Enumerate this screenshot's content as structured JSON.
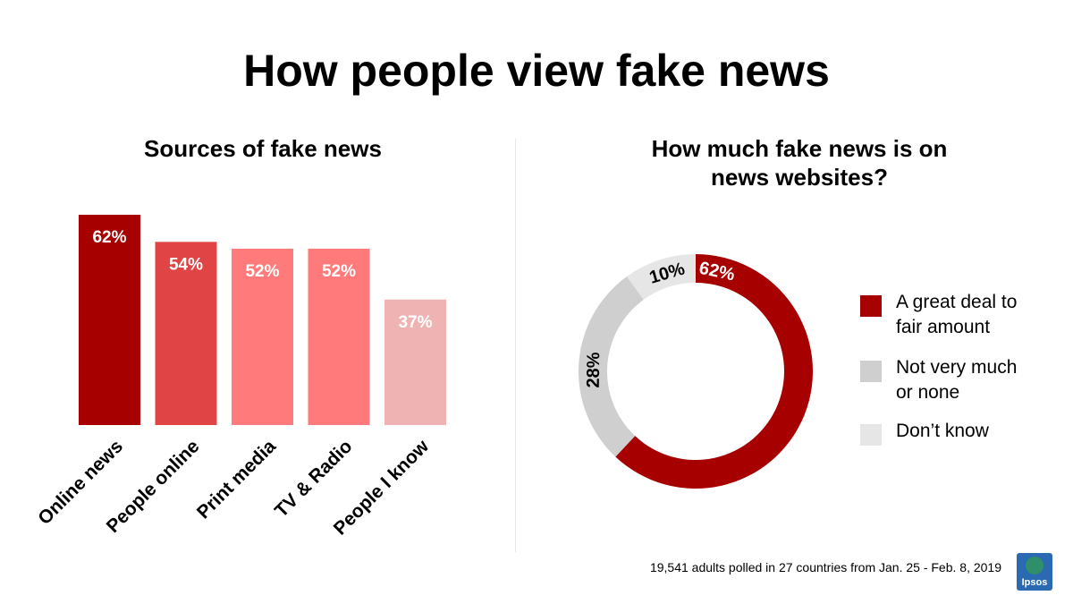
{
  "title": "How people view fake news",
  "footnote": "19,541 adults polled in 27 countries from Jan. 25 - Feb. 8, 2019",
  "logo_text": "Ipsos",
  "colors": {
    "dark_red": "#a60000",
    "mid_red": "#e04444",
    "light_red": "#ff7b7b",
    "pale_red": "#f0b3b3",
    "grey": "#cfcfcf",
    "light_grey": "#e6e6e6"
  },
  "chart_data": [
    {
      "type": "bar",
      "title": "Sources of fake news",
      "categories": [
        "Online news",
        "People online",
        "Print media",
        "TV & Radio",
        "People I know"
      ],
      "values": [
        62,
        54,
        52,
        52,
        37
      ],
      "data_labels": [
        "62%",
        "54%",
        "52%",
        "52%",
        "37%"
      ],
      "bar_colors": [
        "#a60000",
        "#e04444",
        "#ff7b7b",
        "#ff7b7b",
        "#f0b3b3"
      ],
      "ylim": [
        0,
        62
      ],
      "grid": false,
      "xlabel": "",
      "ylabel": ""
    },
    {
      "type": "pie",
      "donut": true,
      "title": "How much fake news is on news websites?",
      "title_lines": [
        "How much fake news is on",
        "news websites?"
      ],
      "slices": [
        {
          "label": "A great deal to fair amount",
          "legend_lines": [
            "A great deal to",
            "fair amount"
          ],
          "value": 62,
          "data_label": "62%",
          "color": "#a60000"
        },
        {
          "label": "Not very much or none",
          "legend_lines": [
            "Not very much",
            "or none"
          ],
          "value": 28,
          "data_label": "28%",
          "color": "#cfcfcf"
        },
        {
          "label": "Don’t know",
          "legend_lines": [
            "Don’t know"
          ],
          "value": 10,
          "data_label": "10%",
          "color": "#e6e6e6"
        }
      ],
      "legend_position": "right"
    }
  ]
}
